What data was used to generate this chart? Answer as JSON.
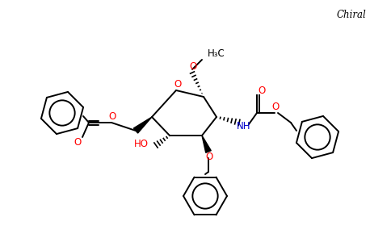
{
  "background_color": "#ffffff",
  "bond_color": "#000000",
  "red_color": "#ff0000",
  "blue_color": "#0000cd",
  "chiral_text": "Chiral",
  "methoxy_label": "H₃C",
  "ho_label": "HO",
  "nh_label": "NH",
  "o_label": "O",
  "figsize": [
    4.84,
    3.0
  ],
  "dpi": 100
}
